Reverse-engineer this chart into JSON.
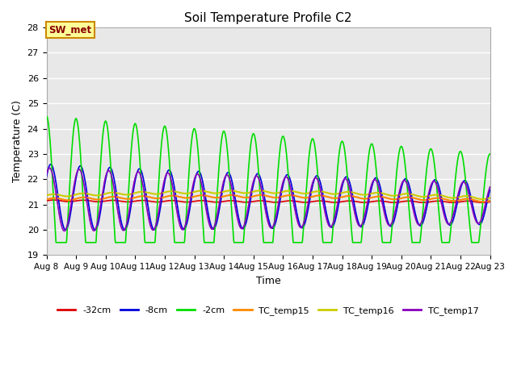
{
  "title": "Soil Temperature Profile C2",
  "xlabel": "Time",
  "ylabel": "Temperature (C)",
  "ylim": [
    19.0,
    28.0
  ],
  "yticks": [
    19.0,
    20.0,
    21.0,
    22.0,
    23.0,
    24.0,
    25.0,
    26.0,
    27.0,
    28.0
  ],
  "x_labels": [
    "Aug 8",
    "Aug 9",
    "Aug 10",
    "Aug 11",
    "Aug 12",
    "Aug 13",
    "Aug 14",
    "Aug 15",
    "Aug 16",
    "Aug 17",
    "Aug 18",
    "Aug 19",
    "Aug 20",
    "Aug 21",
    "Aug 22",
    "Aug 23"
  ],
  "colors": {
    "-32cm": "#dd0000",
    "-8cm": "#0000dd",
    "-2cm": "#00dd00",
    "TC_temp15": "#ff8800",
    "TC_temp16": "#cccc00",
    "TC_temp17": "#8800bb"
  },
  "legend_labels": [
    "-32cm",
    "-8cm",
    "-2cm",
    "TC_temp15",
    "TC_temp16",
    "TC_temp17"
  ],
  "annotation_text": "SW_met",
  "annotation_bg": "#ffff99",
  "annotation_border": "#cc8800",
  "annotation_text_color": "#880000",
  "plot_bg_color": "#e8e8e8",
  "grid_color": "#ffffff",
  "n_points": 1500
}
